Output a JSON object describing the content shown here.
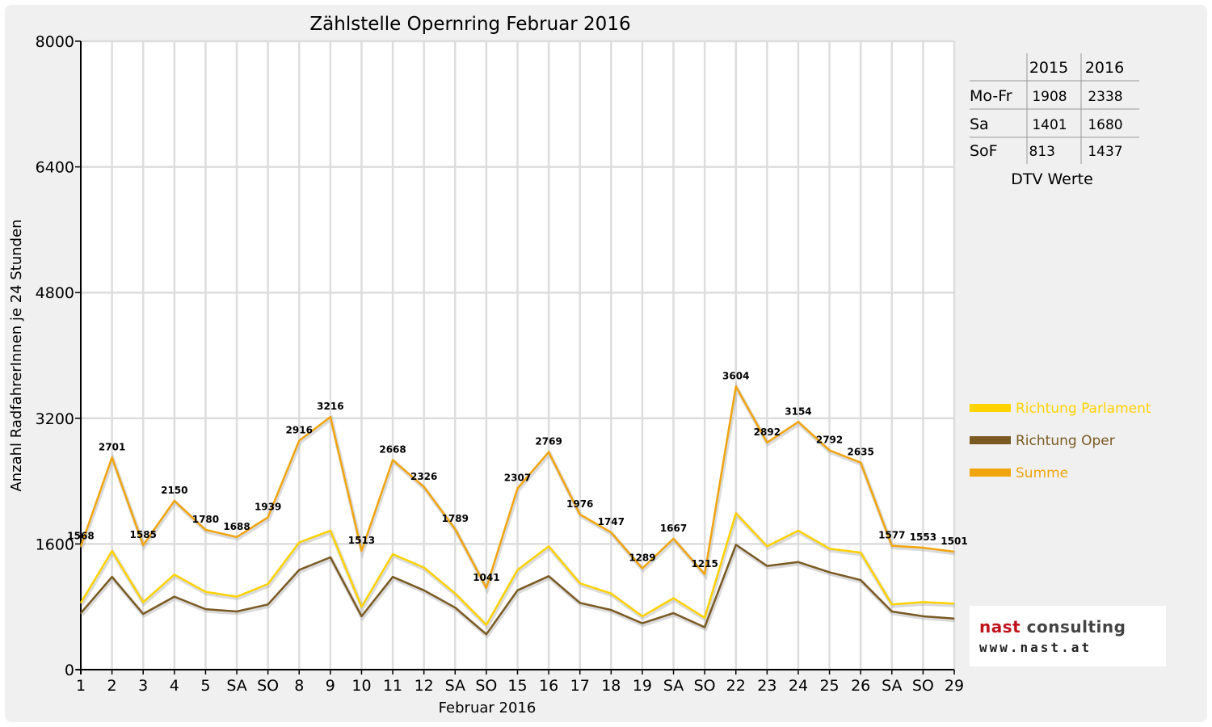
{
  "chart_data": {
    "type": "line",
    "title": "Zählstelle Opernring Februar 2016",
    "xlabel": "Februar 2016",
    "ylabel": "Anzahl RadfahrerInnen je 24 Stunden",
    "ylim": [
      0,
      8000
    ],
    "yticks": [
      "0",
      "1600",
      "3200",
      "4800",
      "6400",
      "8000"
    ],
    "grid": true,
    "legend_position": "right",
    "categories": [
      "1",
      "2",
      "3",
      "4",
      "5",
      "SA",
      "SO",
      "8",
      "9",
      "10",
      "11",
      "12",
      "SA",
      "SO",
      "15",
      "16",
      "17",
      "18",
      "19",
      "SA",
      "SO",
      "22",
      "23",
      "24",
      "25",
      "26",
      "SA",
      "SO",
      "29"
    ],
    "red_categories": [
      "SO"
    ],
    "series": [
      {
        "name": "Richtung Parlament",
        "color": "#ffd200",
        "values": [
          850,
          1510,
          860,
          1210,
          990,
          930,
          1090,
          1620,
          1770,
          800,
          1470,
          1300,
          970,
          570,
          1270,
          1570,
          1100,
          970,
          680,
          910,
          660,
          1990,
          1570,
          1770,
          1540,
          1490,
          830,
          860,
          840
        ],
        "labels": []
      },
      {
        "name": "Richtung Oper",
        "color": "#7a5a22",
        "values": [
          720,
          1180,
          710,
          930,
          770,
          740,
          830,
          1270,
          1430,
          680,
          1180,
          1010,
          790,
          450,
          1010,
          1190,
          850,
          760,
          590,
          720,
          540,
          1590,
          1320,
          1370,
          1240,
          1140,
          740,
          680,
          650
        ],
        "labels": []
      },
      {
        "name": "Summe",
        "color": "#f0a50f",
        "values": [
          1568,
          2701,
          1585,
          2150,
          1780,
          1688,
          1939,
          2916,
          3216,
          1513,
          2668,
          2326,
          1789,
          1041,
          2307,
          2769,
          1976,
          1747,
          1289,
          1667,
          1215,
          3604,
          2892,
          3154,
          2792,
          2635,
          1577,
          1553,
          1501
        ],
        "labels": [
          "1568",
          "2701",
          "1585",
          "2150",
          "1780",
          "1688",
          "1939",
          "2916",
          "3216",
          "1513",
          "2668",
          "2326",
          "1789",
          "1041",
          "2307",
          "2769",
          "1976",
          "1747",
          "1289",
          "1667",
          "1215",
          "3604",
          "2892",
          "3154",
          "2792",
          "2635",
          "1577",
          "1553",
          "1501"
        ]
      }
    ]
  },
  "dtv_table": {
    "caption": "DTV Werte",
    "headers": [
      "",
      "2015",
      "2016"
    ],
    "rows": [
      {
        "label": "Mo-Fr",
        "v2015": "1908",
        "v2016": "2338"
      },
      {
        "label": "Sa",
        "v2015": "1401",
        "v2016": "1680"
      },
      {
        "label": "SoF",
        "v2015": "813",
        "v2016": "1437"
      }
    ]
  },
  "logo": {
    "line1a": "nast",
    "line1b": " consulting",
    "line2": "www.nast.at",
    "accent_color": "#c0141d"
  }
}
